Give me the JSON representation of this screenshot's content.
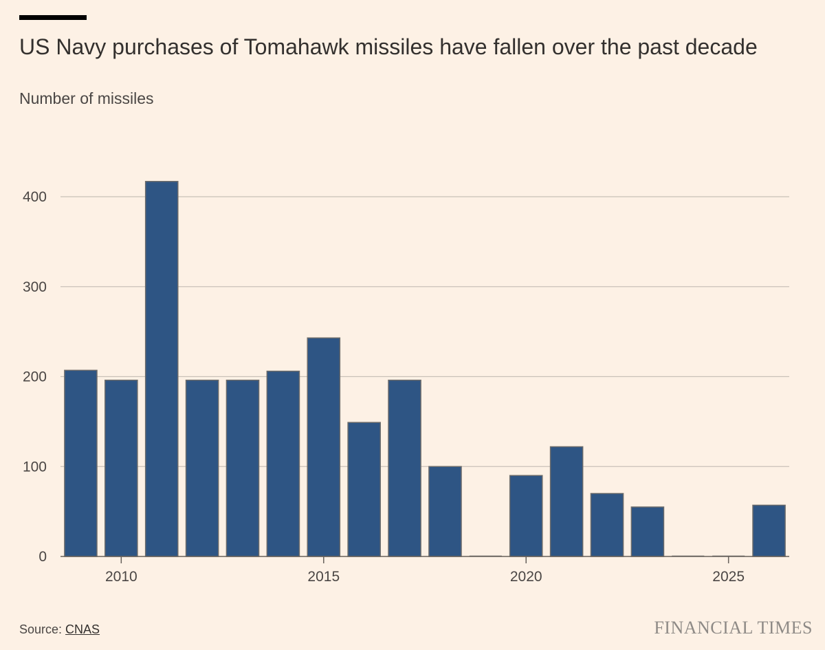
{
  "chart_data": {
    "type": "bar",
    "title": "US Navy purchases of Tomahawk missiles have fallen over the past decade",
    "subtitle": "Number of missiles",
    "xlabel": "",
    "ylabel": "",
    "x_tick_labels": [
      "2010",
      "2015",
      "2020",
      "2025"
    ],
    "y_tick_labels": [
      "0",
      "100",
      "200",
      "300",
      "400"
    ],
    "ylim": [
      0,
      450
    ],
    "grid": true,
    "categories": [
      2009,
      2010,
      2011,
      2012,
      2013,
      2014,
      2015,
      2016,
      2017,
      2018,
      2019,
      2020,
      2021,
      2022,
      2023,
      2024,
      2025,
      2026
    ],
    "values": [
      207,
      196,
      417,
      196,
      196,
      206,
      243,
      149,
      196,
      100,
      0,
      90,
      122,
      70,
      55,
      0,
      0,
      57
    ],
    "colors": {
      "bar": "#2e5584",
      "bar_border": "#6b6b6b",
      "grid": "#c9c1b8",
      "axis": "#66605a",
      "background": "#fdf1e5"
    }
  },
  "footer": {
    "source_prefix": "Source: ",
    "source_link": "CNAS",
    "brand": "FINANCIAL TIMES"
  }
}
